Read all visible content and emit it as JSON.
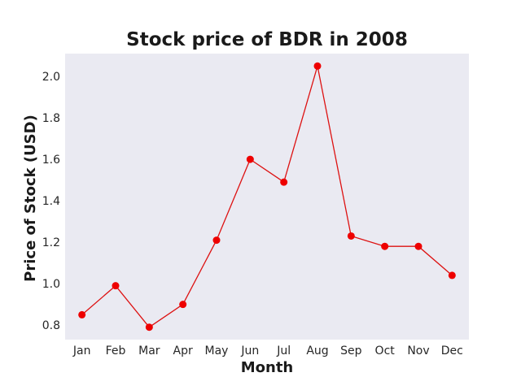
{
  "chart_data": {
    "type": "line",
    "title": "Stock price of BDR in 2008",
    "xlabel": "Month",
    "ylabel": "Price of Stock (USD)",
    "categories": [
      "Jan",
      "Feb",
      "Mar",
      "Apr",
      "May",
      "Jun",
      "Jul",
      "Aug",
      "Sep",
      "Oct",
      "Nov",
      "Dec"
    ],
    "series": [
      {
        "values": [
          0.85,
          0.99,
          0.79,
          0.9,
          1.21,
          1.6,
          1.49,
          2.05,
          1.23,
          1.18,
          1.18,
          1.04
        ]
      }
    ],
    "yticks": [
      "0.8",
      "1.0",
      "1.2",
      "1.4",
      "1.6",
      "1.8",
      "2.0"
    ],
    "ylim": [
      0.73,
      2.11
    ],
    "grid": false,
    "legend": "none",
    "colors": {
      "line": "#dd1111",
      "marker": "#ee0000",
      "plot_background": "#eaeaf2"
    }
  }
}
